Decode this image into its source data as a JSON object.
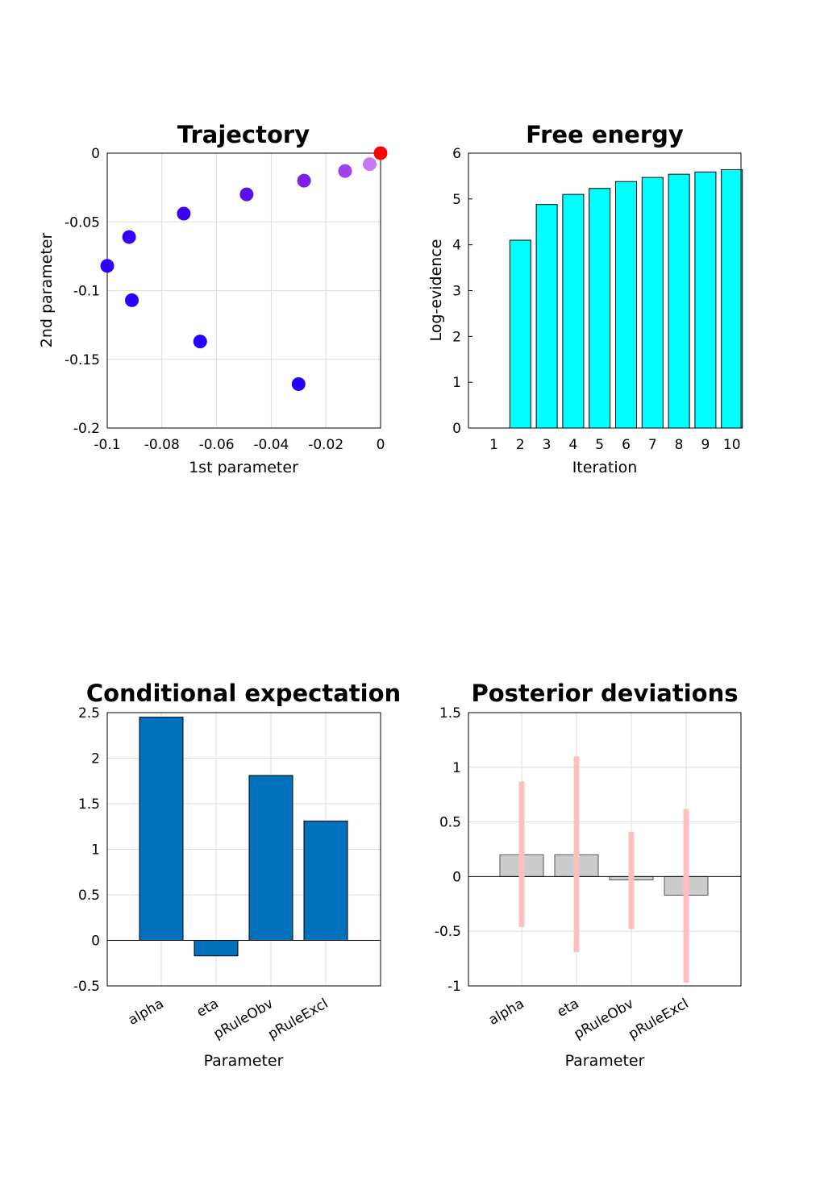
{
  "chart_data": [
    {
      "id": "trajectory",
      "type": "scatter",
      "title": "Trajectory",
      "xlabel": "1st parameter",
      "ylabel": "2nd parameter",
      "xlim": [
        -0.1,
        0
      ],
      "ylim": [
        -0.2,
        0
      ],
      "grid": true,
      "x_ticks": [
        -0.1,
        -0.08,
        -0.06,
        -0.04,
        -0.02,
        0
      ],
      "x_tick_labels": [
        "-0.1",
        "-0.08",
        "-0.06",
        "-0.04",
        "-0.02",
        "0"
      ],
      "y_ticks": [
        0,
        -0.05,
        -0.1,
        -0.15,
        -0.2
      ],
      "y_tick_labels": [
        "0",
        "-0.05",
        "-0.1",
        "-0.15",
        "-0.2"
      ],
      "points": [
        {
          "x": -0.03,
          "y": -0.168,
          "color": "#2200ff"
        },
        {
          "x": -0.066,
          "y": -0.137,
          "color": "#2500ff"
        },
        {
          "x": -0.091,
          "y": -0.107,
          "color": "#2a00ff"
        },
        {
          "x": -0.1,
          "y": -0.082,
          "color": "#2f00ff"
        },
        {
          "x": -0.092,
          "y": -0.061,
          "color": "#3400ff"
        },
        {
          "x": -0.072,
          "y": -0.044,
          "color": "#3c00f5"
        },
        {
          "x": -0.049,
          "y": -0.03,
          "color": "#5a10ea"
        },
        {
          "x": -0.028,
          "y": -0.02,
          "color": "#7a20ea"
        },
        {
          "x": -0.013,
          "y": -0.013,
          "color": "#a040f0"
        },
        {
          "x": -0.004,
          "y": -0.008,
          "color": "#c878f5"
        },
        {
          "x": 0.0,
          "y": 0.0,
          "color": "#ff0000"
        }
      ]
    },
    {
      "id": "free-energy",
      "type": "bar",
      "title": "Free energy",
      "xlabel": "Iteration",
      "ylabel": "Log-evidence",
      "ylim": [
        0,
        6
      ],
      "grid": false,
      "categories": [
        "1",
        "2",
        "3",
        "4",
        "5",
        "6",
        "7",
        "8",
        "9",
        "10"
      ],
      "values": [
        0,
        4.1,
        4.88,
        5.1,
        5.23,
        5.38,
        5.47,
        5.54,
        5.59,
        5.64
      ],
      "y_ticks": [
        0,
        1,
        2,
        3,
        4,
        5,
        6
      ],
      "y_tick_labels": [
        "0",
        "1",
        "2",
        "3",
        "4",
        "5",
        "6"
      ],
      "bar_color": "#00ffff"
    },
    {
      "id": "conditional-expectation",
      "type": "bar",
      "title": "Conditional expectation",
      "xlabel": "Parameter",
      "ylabel": "",
      "ylim": [
        -0.5,
        2.5
      ],
      "grid": true,
      "categories": [
        "alpha",
        "eta",
        "pRuleObv",
        "pRuleExcl"
      ],
      "values": [
        2.45,
        -0.17,
        1.81,
        1.31
      ],
      "y_ticks": [
        2.5,
        2,
        1.5,
        1,
        0.5,
        0,
        -0.5
      ],
      "y_tick_labels": [
        "2.5",
        "2",
        "1.5",
        "1",
        "0.5",
        "0",
        "-0.5"
      ],
      "bar_color": "#0072bd"
    },
    {
      "id": "posterior-deviations",
      "type": "bar",
      "title": "Posterior deviations",
      "xlabel": "Parameter",
      "ylabel": "",
      "ylim": [
        -1,
        1.5
      ],
      "grid": true,
      "categories": [
        "alpha",
        "eta",
        "pRuleObv",
        "pRuleExcl"
      ],
      "values": [
        0.2,
        0.2,
        -0.03,
        -0.17
      ],
      "error_ranges": [
        [
          -0.46,
          0.87
        ],
        [
          -0.69,
          1.1
        ],
        [
          -0.48,
          0.41
        ],
        [
          -0.97,
          0.62
        ]
      ],
      "y_ticks": [
        1.5,
        1,
        0.5,
        0,
        -0.5,
        -1
      ],
      "y_tick_labels": [
        "1.5",
        "1",
        "0.5",
        "0",
        "-0.5",
        "-1"
      ],
      "bar_color": "#cccccc",
      "error_color": "#ffbfbf"
    }
  ]
}
